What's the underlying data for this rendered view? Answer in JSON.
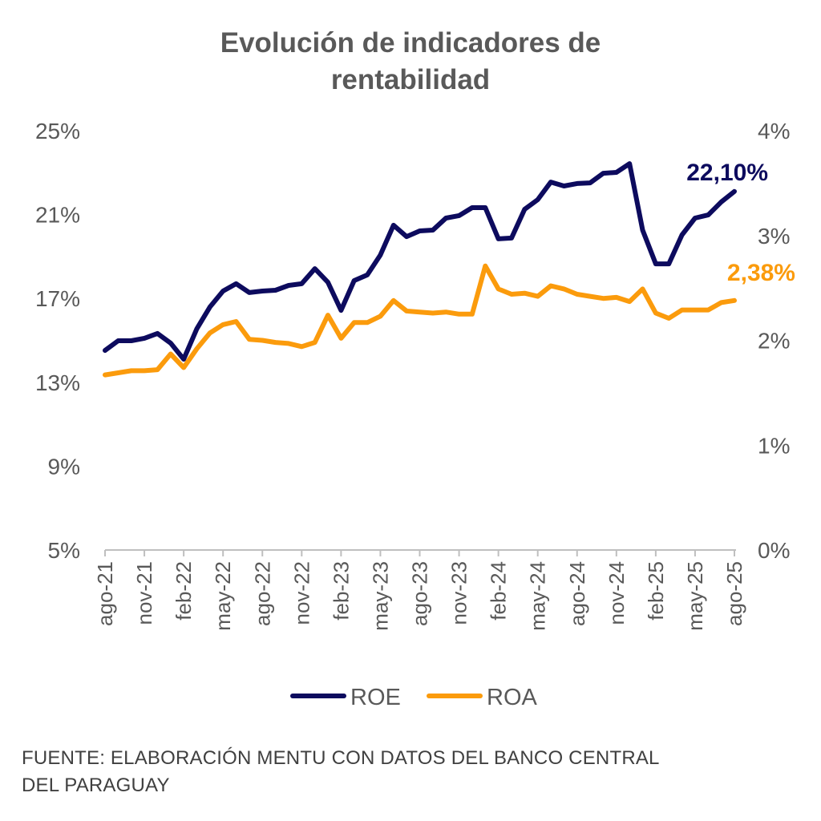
{
  "chart_data": {
    "type": "line",
    "title": [
      "Evolución de indicadores de",
      "rentabilidad"
    ],
    "x_tick_labels": [
      "ago-21",
      "nov-21",
      "feb-22",
      "may-22",
      "ago-22",
      "nov-22",
      "feb-23",
      "may-23",
      "ago-23",
      "nov-23",
      "feb-24",
      "may-24",
      "ago-24",
      "nov-24",
      "feb-25",
      "may-25",
      "ago-25"
    ],
    "n_points": 49,
    "y_left": {
      "ticks": [
        "5%",
        "9%",
        "13%",
        "17%",
        "21%",
        "25%"
      ],
      "range": [
        5,
        25
      ]
    },
    "y_right": {
      "ticks": [
        "0%",
        "1%",
        "2%",
        "3%",
        "4%"
      ],
      "range": [
        0,
        4
      ]
    },
    "series": [
      {
        "name": "ROE",
        "axis": "left",
        "color": "#0d0b5e",
        "values": [
          14.52,
          14.98,
          14.98,
          15.1,
          15.33,
          14.87,
          14.1,
          15.55,
          16.59,
          17.35,
          17.7,
          17.28,
          17.35,
          17.39,
          17.62,
          17.7,
          18.42,
          17.77,
          16.43,
          17.85,
          18.12,
          19.07,
          20.49,
          19.95,
          20.22,
          20.26,
          20.83,
          20.95,
          21.33,
          21.33,
          19.84,
          19.88,
          21.25,
          21.71,
          22.55,
          22.36,
          22.48,
          22.51,
          22.97,
          23.01,
          23.43,
          20.26,
          18.65,
          18.65,
          20.03,
          20.83,
          20.98,
          21.6,
          22.1
        ],
        "last_label": "22,10%"
      },
      {
        "name": "ROA",
        "axis": "right",
        "color": "#fb9b0c",
        "values": [
          1.67,
          1.69,
          1.71,
          1.71,
          1.72,
          1.87,
          1.74,
          1.92,
          2.07,
          2.15,
          2.18,
          2.01,
          2.0,
          1.98,
          1.97,
          1.94,
          1.98,
          2.24,
          2.02,
          2.17,
          2.17,
          2.23,
          2.38,
          2.28,
          2.27,
          2.26,
          2.27,
          2.25,
          2.25,
          2.71,
          2.49,
          2.44,
          2.45,
          2.42,
          2.52,
          2.49,
          2.44,
          2.42,
          2.4,
          2.41,
          2.37,
          2.49,
          2.26,
          2.21,
          2.29,
          2.29,
          2.29,
          2.36,
          2.38
        ],
        "last_label": "2,38%"
      }
    ],
    "legend": {
      "position": "bottom",
      "entries": [
        "ROE",
        "ROA"
      ]
    },
    "grid": false
  },
  "source": [
    "FUENTE: ELABORACIÓN MENTU CON DATOS DEL BANCO CENTRAL",
    "DEL PARAGUAY"
  ]
}
